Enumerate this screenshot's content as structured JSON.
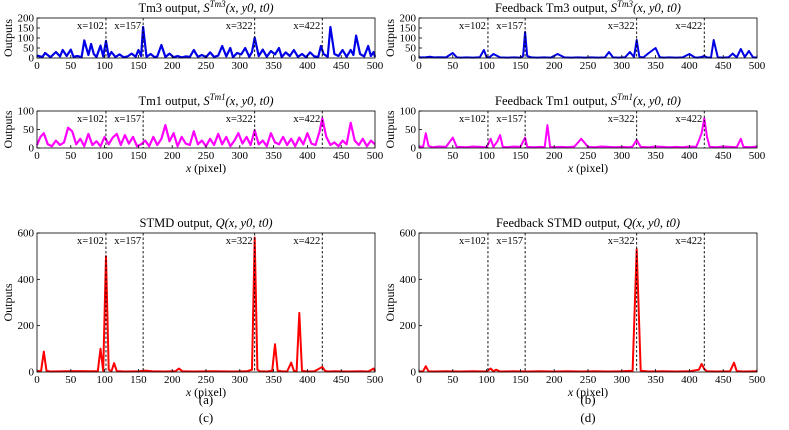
{
  "chart_data": [
    {
      "id": "tm3",
      "type": "line",
      "title_main": "Tm3 output, ",
      "title_sym": "S",
      "title_sup": "Tm3",
      "title_args": "(x, y0, t0)",
      "xlabel": "",
      "ylabel": "Outputs",
      "xlim": [
        0,
        500
      ],
      "ylim": [
        0,
        200
      ],
      "xticks": [
        0,
        50,
        100,
        150,
        200,
        250,
        300,
        350,
        400,
        450,
        500
      ],
      "yticks": [
        0,
        50,
        100,
        150,
        200
      ],
      "color": "#0000e6",
      "vlines": [
        102,
        157,
        322,
        422
      ],
      "vline_labels": [
        "x=102",
        "x=157",
        "x=322",
        "x=422"
      ],
      "series": [
        {
          "x": [
            0,
            8,
            12,
            20,
            28,
            34,
            38,
            44,
            50,
            54,
            60,
            66,
            70,
            76,
            80,
            84,
            88,
            94,
            98,
            102,
            106,
            110,
            116,
            122,
            128,
            134,
            140,
            146,
            150,
            154,
            157,
            162,
            168,
            174,
            178,
            184,
            190,
            196,
            202,
            208,
            214,
            220,
            226,
            232,
            238,
            244,
            250,
            256,
            262,
            268,
            274,
            280,
            286,
            290,
            296,
            302,
            308,
            314,
            318,
            322,
            328,
            334,
            340,
            346,
            352,
            358,
            362,
            368,
            374,
            380,
            386,
            392,
            398,
            404,
            410,
            416,
            420,
            424,
            430,
            434,
            440,
            446,
            452,
            458,
            464,
            468,
            472,
            478,
            484,
            490,
            494,
            498,
            500
          ],
          "y": [
            12,
            5,
            25,
            4,
            30,
            8,
            40,
            10,
            42,
            6,
            10,
            4,
            88,
            15,
            70,
            20,
            5,
            62,
            8,
            85,
            6,
            30,
            5,
            18,
            4,
            8,
            22,
            6,
            40,
            10,
            155,
            6,
            20,
            4,
            8,
            65,
            5,
            22,
            4,
            10,
            3,
            8,
            5,
            40,
            6,
            15,
            4,
            28,
            5,
            12,
            60,
            8,
            50,
            4,
            25,
            18,
            50,
            6,
            30,
            102,
            10,
            42,
            6,
            35,
            18,
            50,
            5,
            28,
            10,
            40,
            6,
            20,
            4,
            28,
            8,
            5,
            60,
            20,
            6,
            155,
            20,
            10,
            40,
            6,
            40,
            15,
            112,
            20,
            8,
            60,
            10,
            30,
            6
          ]
        }
      ]
    },
    {
      "id": "tm1",
      "type": "line",
      "title_main": "Tm1 output, ",
      "title_sym": "S",
      "title_sup": "Tm1",
      "title_args": "(x, y0, t0)",
      "xlabel": "x (pixel)",
      "ylabel": "Outputs",
      "xlim": [
        0,
        500
      ],
      "ylim": [
        0,
        100
      ],
      "xticks": [
        0,
        50,
        100,
        150,
        200,
        250,
        300,
        350,
        400,
        450,
        500
      ],
      "yticks": [
        0,
        50,
        100
      ],
      "color": "#ff00ff",
      "vlines": [
        102,
        157,
        322,
        422
      ],
      "vline_labels": [
        "x=102",
        "x=157",
        "x=322",
        "x=422"
      ],
      "series": [
        {
          "x": [
            0,
            5,
            10,
            16,
            22,
            28,
            34,
            40,
            46,
            52,
            58,
            64,
            70,
            76,
            82,
            88,
            94,
            100,
            106,
            112,
            118,
            124,
            130,
            136,
            142,
            148,
            154,
            160,
            166,
            172,
            178,
            184,
            190,
            196,
            202,
            208,
            214,
            220,
            226,
            232,
            238,
            244,
            250,
            256,
            262,
            268,
            274,
            280,
            286,
            292,
            298,
            304,
            310,
            316,
            322,
            328,
            334,
            340,
            346,
            352,
            358,
            364,
            370,
            376,
            382,
            388,
            394,
            400,
            406,
            412,
            418,
            422,
            428,
            434,
            440,
            446,
            452,
            458,
            464,
            470,
            476,
            482,
            488,
            494,
            500
          ],
          "y": [
            8,
            30,
            40,
            10,
            5,
            20,
            8,
            15,
            55,
            45,
            10,
            25,
            5,
            38,
            8,
            18,
            5,
            30,
            10,
            28,
            38,
            8,
            35,
            12,
            30,
            5,
            10,
            20,
            5,
            30,
            8,
            25,
            62,
            18,
            40,
            5,
            30,
            12,
            8,
            45,
            10,
            20,
            5,
            25,
            8,
            38,
            10,
            30,
            5,
            20,
            40,
            12,
            30,
            8,
            48,
            10,
            20,
            5,
            40,
            15,
            10,
            30,
            8,
            25,
            5,
            28,
            10,
            40,
            12,
            8,
            45,
            80,
            30,
            8,
            15,
            5,
            20,
            10,
            68,
            20,
            8,
            25,
            5,
            20,
            10
          ]
        }
      ]
    },
    {
      "id": "fb_tm3",
      "type": "line",
      "title_main": "Feedback Tm3 output, ",
      "title_sym": "S",
      "title_sup": "Tm3",
      "title_args": "(x, y0, t0)",
      "xlabel": "",
      "ylabel": "Outputs",
      "xlim": [
        0,
        500
      ],
      "ylim": [
        0,
        200
      ],
      "xticks": [
        0,
        50,
        100,
        150,
        200,
        250,
        300,
        350,
        400,
        450,
        500
      ],
      "yticks": [
        0,
        50,
        100,
        150,
        200
      ],
      "color": "#0000e6",
      "vlines": [
        102,
        157,
        322,
        422
      ],
      "vline_labels": [
        "x=102",
        "x=157",
        "x=322",
        "x=422"
      ],
      "series": [
        {
          "x": [
            0,
            10,
            16,
            22,
            30,
            40,
            50,
            56,
            62,
            70,
            80,
            90,
            96,
            100,
            104,
            110,
            120,
            130,
            140,
            150,
            154,
            157,
            160,
            166,
            175,
            185,
            195,
            205,
            215,
            225,
            235,
            245,
            255,
            265,
            275,
            281,
            287,
            295,
            305,
            312,
            318,
            322,
            326,
            332,
            340,
            350,
            356,
            362,
            370,
            380,
            390,
            400,
            408,
            412,
            418,
            422,
            426,
            432,
            436,
            442,
            450,
            458,
            464,
            470,
            476,
            482,
            488,
            494,
            500
          ],
          "y": [
            3,
            4,
            6,
            3,
            4,
            3,
            25,
            3,
            2,
            3,
            2,
            4,
            40,
            4,
            3,
            20,
            3,
            2,
            3,
            2,
            10,
            130,
            10,
            3,
            2,
            3,
            2,
            20,
            3,
            2,
            3,
            2,
            3,
            2,
            3,
            30,
            3,
            2,
            4,
            30,
            5,
            90,
            5,
            3,
            25,
            50,
            4,
            2,
            3,
            2,
            3,
            20,
            3,
            2,
            5,
            10,
            3,
            2,
            90,
            3,
            2,
            4,
            22,
            3,
            45,
            5,
            35,
            4,
            2
          ]
        }
      ]
    },
    {
      "id": "fb_tm1",
      "type": "line",
      "title_main": "Feedback Tm1 output, ",
      "title_sym": "S",
      "title_sup": "Tm1",
      "title_args": "(x, y0, t0)",
      "xlabel": "x (pixel)",
      "ylabel": "Outputs",
      "xlim": [
        0,
        500
      ],
      "ylim": [
        0,
        100
      ],
      "xticks": [
        0,
        50,
        100,
        150,
        200,
        250,
        300,
        350,
        400,
        450,
        500
      ],
      "yticks": [
        0,
        50,
        100
      ],
      "color": "#ff00ff",
      "vlines": [
        102,
        157,
        322,
        422
      ],
      "vline_labels": [
        "x=102",
        "x=157",
        "x=322",
        "x=422"
      ],
      "series": [
        {
          "x": [
            0,
            6,
            10,
            14,
            20,
            30,
            40,
            50,
            56,
            60,
            70,
            80,
            90,
            100,
            106,
            110,
            116,
            120,
            124,
            130,
            140,
            150,
            157,
            160,
            170,
            180,
            186,
            190,
            194,
            200,
            210,
            220,
            230,
            240,
            250,
            260,
            270,
            280,
            290,
            300,
            310,
            316,
            322,
            328,
            340,
            350,
            360,
            370,
            380,
            390,
            400,
            410,
            414,
            418,
            422,
            426,
            430,
            440,
            450,
            460,
            470,
            476,
            480,
            490,
            500
          ],
          "y": [
            4,
            3,
            40,
            6,
            2,
            4,
            3,
            28,
            2,
            3,
            2,
            4,
            3,
            2,
            25,
            3,
            18,
            35,
            3,
            2,
            4,
            3,
            28,
            3,
            2,
            3,
            2,
            62,
            3,
            2,
            3,
            2,
            4,
            25,
            3,
            2,
            4,
            3,
            2,
            3,
            2,
            4,
            22,
            3,
            2,
            4,
            3,
            2,
            3,
            2,
            4,
            3,
            20,
            40,
            80,
            30,
            3,
            2,
            4,
            3,
            2,
            25,
            3,
            2,
            4
          ]
        }
      ]
    },
    {
      "id": "stmd",
      "type": "line",
      "title_main": "STMD output, ",
      "title_sym": "Q",
      "title_sup": "",
      "title_args": "(x, y0, t0)",
      "xlabel": "x (pixel)",
      "ylabel": "Outputs",
      "xlim": [
        0,
        500
      ],
      "ylim": [
        0,
        600
      ],
      "xticks": [
        0,
        50,
        100,
        150,
        200,
        250,
        300,
        350,
        400,
        450,
        500
      ],
      "yticks": [
        0,
        200,
        400,
        600
      ],
      "color": "#ff0000",
      "vlines": [
        102,
        157,
        322,
        422
      ],
      "vline_labels": [
        "x=102",
        "x=157",
        "x=322",
        "x=422"
      ],
      "series": [
        {
          "x": [
            0,
            6,
            10,
            14,
            20,
            40,
            60,
            80,
            90,
            94,
            98,
            102,
            106,
            110,
            114,
            118,
            130,
            150,
            160,
            170,
            190,
            205,
            210,
            215,
            230,
            260,
            290,
            310,
            318,
            322,
            326,
            330,
            340,
            348,
            352,
            356,
            362,
            370,
            376,
            380,
            384,
            388,
            392,
            400,
            410,
            416,
            422,
            426,
            430,
            440,
            460,
            480,
            490,
            494,
            498,
            500
          ],
          "y": [
            3,
            5,
            88,
            5,
            2,
            3,
            4,
            3,
            3,
            100,
            5,
            500,
            10,
            3,
            38,
            4,
            2,
            3,
            6,
            3,
            2,
            4,
            15,
            3,
            2,
            3,
            2,
            3,
            10,
            580,
            10,
            3,
            2,
            5,
            120,
            5,
            3,
            2,
            40,
            5,
            3,
            255,
            5,
            2,
            3,
            12,
            22,
            5,
            2,
            3,
            2,
            3,
            2,
            8,
            15,
            3
          ]
        }
      ]
    },
    {
      "id": "fb_stmd",
      "type": "line",
      "title_main": "Feedback STMD output, ",
      "title_sym": "Q",
      "title_sup": "",
      "title_args": "(x, y0, t0)",
      "xlabel": "x (pixel)",
      "ylabel": "Outputs",
      "xlim": [
        0,
        500
      ],
      "ylim": [
        0,
        600
      ],
      "xticks": [
        0,
        50,
        100,
        150,
        200,
        250,
        300,
        350,
        400,
        450,
        500
      ],
      "yticks": [
        0,
        200,
        400,
        600
      ],
      "color": "#ff0000",
      "vlines": [
        102,
        157,
        322,
        422
      ],
      "vline_labels": [
        "x=102",
        "x=157",
        "x=322",
        "x=422"
      ],
      "series": [
        {
          "x": [
            0,
            6,
            10,
            14,
            20,
            40,
            60,
            80,
            100,
            106,
            110,
            114,
            120,
            140,
            160,
            180,
            200,
            220,
            240,
            260,
            280,
            300,
            316,
            322,
            328,
            340,
            360,
            380,
            400,
            414,
            418,
            422,
            426,
            440,
            460,
            466,
            470,
            480,
            500
          ],
          "y": [
            2,
            3,
            25,
            3,
            2,
            3,
            2,
            3,
            2,
            15,
            3,
            10,
            2,
            3,
            2,
            3,
            2,
            3,
            2,
            3,
            2,
            3,
            5,
            530,
            5,
            2,
            3,
            2,
            3,
            10,
            35,
            12,
            3,
            2,
            3,
            40,
            4,
            2,
            3
          ]
        }
      ]
    }
  ],
  "captions": [
    "(a)",
    "(b)",
    "(c)",
    "(d)"
  ]
}
